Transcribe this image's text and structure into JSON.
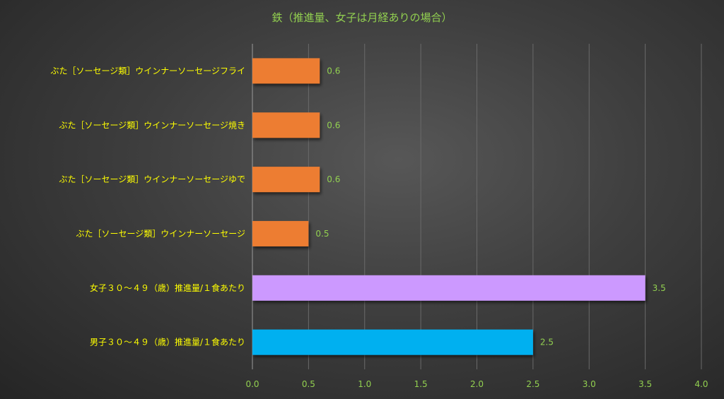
{
  "chart_data": {
    "type": "bar",
    "orientation": "horizontal",
    "title": "鉄（推進量、女子は月経ありの場合）",
    "xlabel": "",
    "ylabel": "",
    "xlim": [
      0,
      4.0
    ],
    "ticks": [
      "0.0",
      "0.5",
      "1.0",
      "1.5",
      "2.0",
      "2.5",
      "3.0",
      "3.5",
      "4.0"
    ],
    "grid": true,
    "categories": [
      "ぶた［ソーセージ類］ウインナーソーセージフライ",
      "ぶた［ソーセージ類］ウインナーソーセージ焼き",
      "ぶた［ソーセージ類］ウインナーソーセージゆで",
      "ぶた［ソーセージ類］ウインナーソーセージ",
      "女子３０～４９（歳）推進量/１食あたり",
      "男子３０～４９（歳）推進量/１食あたり"
    ],
    "values": [
      0.6,
      0.6,
      0.6,
      0.5,
      3.5,
      2.5
    ],
    "value_labels": [
      "0.6",
      "0.6",
      "0.6",
      "0.5",
      "3.5",
      "2.5"
    ],
    "colors": [
      "#ed7d31",
      "#ed7d31",
      "#ed7d31",
      "#ed7d31",
      "#cc99ff",
      "#00b0f0"
    ]
  }
}
